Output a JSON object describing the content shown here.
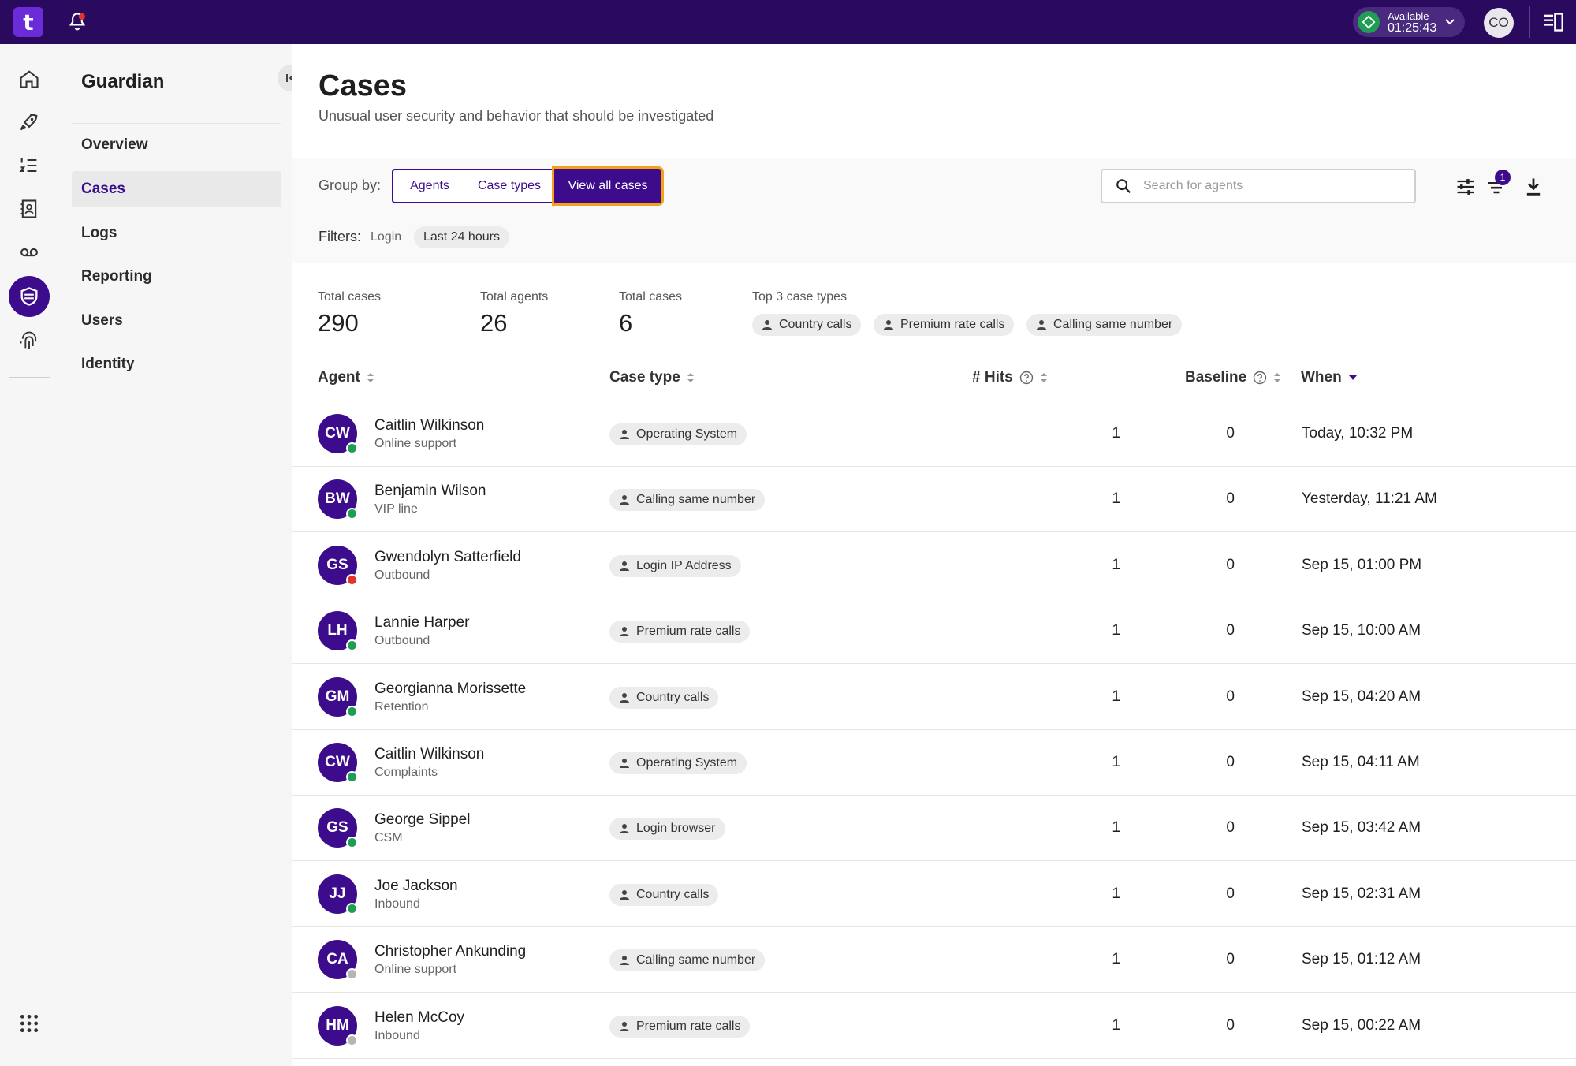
{
  "topbar": {
    "logo_text": "t",
    "status_label": "Available",
    "status_time": "01:25:43",
    "user_initials": "CO",
    "brand_color": "#2a0a5e",
    "accent_color": "#3d0c8c"
  },
  "rail": {
    "icons": [
      "home-icon",
      "rocket-icon",
      "list-numbered-icon",
      "contacts-icon",
      "voicemail-icon",
      "shield-icon",
      "fingerprint-icon",
      "apps-grid-icon"
    ]
  },
  "subnav": {
    "title": "Guardian",
    "items": [
      {
        "label": "Overview"
      },
      {
        "label": "Cases"
      },
      {
        "label": "Logs"
      },
      {
        "label": "Reporting"
      },
      {
        "label": "Users"
      },
      {
        "label": "Identity"
      }
    ]
  },
  "page": {
    "title": "Cases",
    "subtitle": "Unusual user security and behavior that should be investigated"
  },
  "toolbar": {
    "group_by_label": "Group by:",
    "groups": [
      {
        "label": "Agents"
      },
      {
        "label": "Case types"
      },
      {
        "label": "View all cases"
      }
    ],
    "search_placeholder": "Search for agents",
    "filter_badge": "1"
  },
  "filters": {
    "label": "Filters:",
    "plain": "Login",
    "chip": "Last 24 hours"
  },
  "stats": {
    "total_cases_label": "Total cases",
    "total_cases_value": "290",
    "total_agents_label": "Total agents",
    "total_agents_value": "26",
    "total_cases2_label": "Total cases",
    "total_cases2_value": "6",
    "top_types_label": "Top 3 case types",
    "top_types": [
      "Country calls",
      "Premium rate calls",
      "Calling same number"
    ]
  },
  "table": {
    "headers": {
      "agent": "Agent",
      "case_type": "Case type",
      "hits": "# Hits",
      "baseline": "Baseline",
      "when": "When"
    },
    "rows": [
      {
        "initials": "CW",
        "name": "Caitlin Wilkinson",
        "team": "Online support",
        "case_type": "Operating System",
        "hits": "1",
        "baseline": "0",
        "when": "Today, 10:32 PM",
        "presence": "#1f9d55"
      },
      {
        "initials": "BW",
        "name": "Benjamin Wilson",
        "team": "VIP line",
        "case_type": "Calling same number",
        "hits": "1",
        "baseline": "0",
        "when": "Yesterday, 11:21 AM",
        "presence": "#1f9d55"
      },
      {
        "initials": "GS",
        "name": "Gwendolyn Satterfield",
        "team": "Outbound",
        "case_type": "Login IP Address",
        "hits": "1",
        "baseline": "0",
        "when": "Sep 15, 01:00 PM",
        "presence": "#e0352b"
      },
      {
        "initials": "LH",
        "name": "Lannie Harper",
        "team": "Outbound",
        "case_type": "Premium rate calls",
        "hits": "1",
        "baseline": "0",
        "when": "Sep 15, 10:00 AM",
        "presence": "#1f9d55"
      },
      {
        "initials": "GM",
        "name": "Georgianna Morissette",
        "team": "Retention",
        "case_type": "Country calls",
        "hits": "1",
        "baseline": "0",
        "when": "Sep 15, 04:20 AM",
        "presence": "#1f9d55"
      },
      {
        "initials": "CW",
        "name": "Caitlin Wilkinson",
        "team": "Complaints",
        "case_type": "Operating System",
        "hits": "1",
        "baseline": "0",
        "when": "Sep 15, 04:11 AM",
        "presence": "#1f9d55"
      },
      {
        "initials": "GS",
        "name": "George Sippel",
        "team": "CSM",
        "case_type": "Login browser",
        "hits": "1",
        "baseline": "0",
        "when": "Sep 15, 03:42 AM",
        "presence": "#1f9d55"
      },
      {
        "initials": "JJ",
        "name": "Joe Jackson",
        "team": "Inbound",
        "case_type": "Country calls",
        "hits": "1",
        "baseline": "0",
        "when": "Sep 15, 02:31 AM",
        "presence": "#1f9d55"
      },
      {
        "initials": "CA",
        "name": "Christopher Ankunding",
        "team": "Online support",
        "case_type": "Calling same number",
        "hits": "1",
        "baseline": "0",
        "when": "Sep 15, 01:12 AM",
        "presence": "#b5b5b5"
      },
      {
        "initials": "HM",
        "name": "Helen McCoy",
        "team": "Inbound",
        "case_type": "Premium rate calls",
        "hits": "1",
        "baseline": "0",
        "when": "Sep 15, 00:22 AM",
        "presence": "#b5b5b5"
      }
    ]
  }
}
